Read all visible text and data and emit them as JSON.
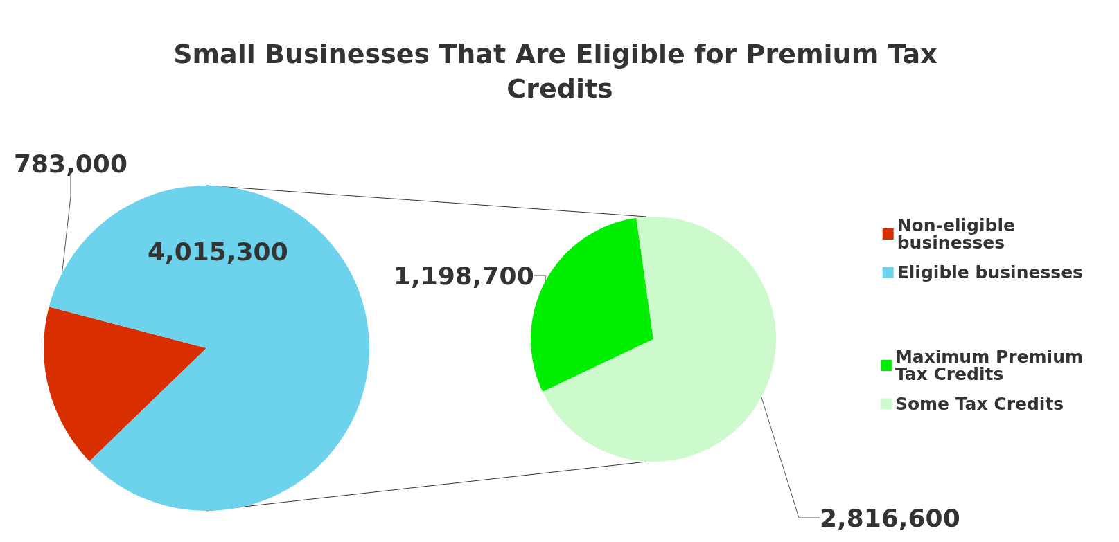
{
  "chart_data": [
    {
      "type": "pie",
      "title": "Small Businesses That Are Eligible for Premium Tax Credits",
      "categories": [
        "Non-eligible businesses",
        "Eligible businesses"
      ],
      "values": [
        783000,
        4015300
      ],
      "value_labels": [
        "783,000",
        "4,015,300"
      ],
      "colors": [
        "#d92e00",
        "#6dd3ec"
      ],
      "legend": "right"
    },
    {
      "type": "pie",
      "categories": [
        "Maximum Premium Tax Credits",
        "Some Tax Credits"
      ],
      "values": [
        1198700,
        2816600
      ],
      "value_labels": [
        "1,198,700",
        "2,816,600"
      ],
      "colors": [
        "#00ee00",
        "#ccfacc"
      ],
      "legend": "right"
    }
  ]
}
